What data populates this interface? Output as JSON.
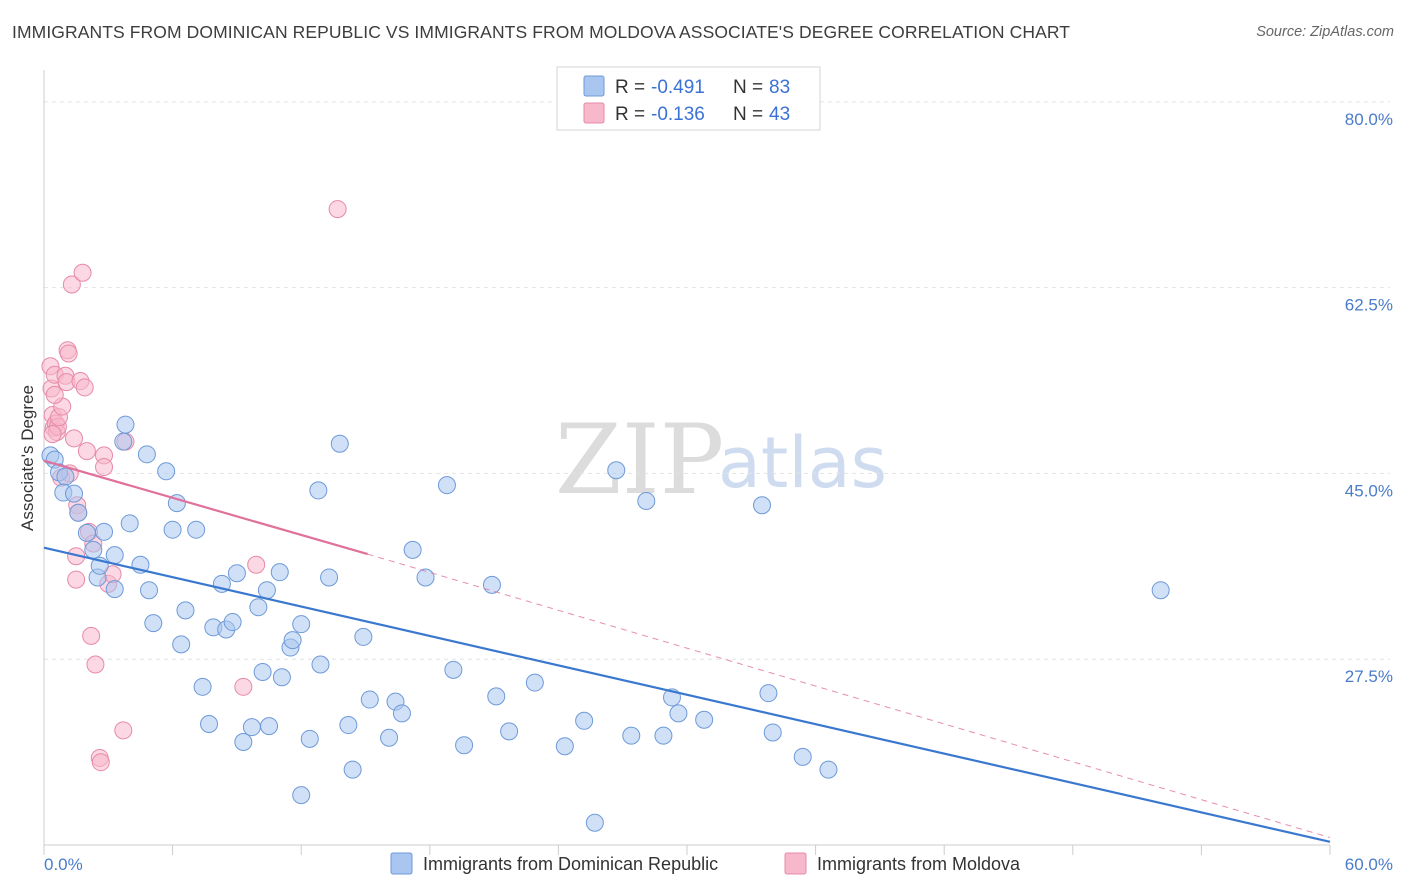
{
  "header": {
    "title": "IMMIGRANTS FROM DOMINICAN REPUBLIC VS IMMIGRANTS FROM MOLDOVA ASSOCIATE'S DEGREE CORRELATION CHART",
    "source": "Source: ZipAtlas.com"
  },
  "watermark": {
    "zip": "ZIP",
    "atlas": "atlas"
  },
  "legend": {
    "r_label": "R =",
    "n_label": "N =",
    "entries": [
      {
        "r": "-0.491",
        "n": "83"
      },
      {
        "r": "-0.136",
        "n": "43"
      }
    ]
  },
  "colors": {
    "blue_fill": "#a9c6f0",
    "blue_stroke": "#6e9ad8",
    "blue_line": "#3a78d0",
    "pink_fill": "#f7b8cc",
    "pink_stroke": "#e78aa8",
    "pink_line": "#e0719b",
    "tick_text": "#4a7cc9",
    "grid": "#e3e3e3"
  },
  "chart_data": {
    "type": "scatter",
    "title": "IMMIGRANTS FROM DOMINICAN REPUBLIC VS IMMIGRANTS FROM MOLDOVA ASSOCIATE'S DEGREE CORRELATION CHART",
    "ylabel": "Associate's Degree",
    "xlabel": "",
    "xlim": [
      0,
      60
    ],
    "ylim": [
      10,
      83
    ],
    "x_ticks": [
      "0.0%",
      "60.0%"
    ],
    "y_ticks": [
      {
        "value": 80.0,
        "label": "80.0%"
      },
      {
        "value": 62.5,
        "label": "62.5%"
      },
      {
        "value": 45.0,
        "label": "45.0%"
      },
      {
        "value": 27.5,
        "label": "27.5%"
      }
    ],
    "grid": true,
    "legend_position": "top-center",
    "series": [
      {
        "name": "Immigrants from Dominican Republic",
        "color": "#a9c6f0",
        "trend": {
          "x": [
            0,
            60
          ],
          "y": [
            38.0,
            10.3
          ],
          "style": "solid"
        },
        "points": [
          [
            0.3,
            46.7
          ],
          [
            0.5,
            46.3
          ],
          [
            0.7,
            45.1
          ],
          [
            1.0,
            44.7
          ],
          [
            0.9,
            43.2
          ],
          [
            1.4,
            43.1
          ],
          [
            1.6,
            41.3
          ],
          [
            2.0,
            39.4
          ],
          [
            2.3,
            37.8
          ],
          [
            2.5,
            35.2
          ],
          [
            2.6,
            36.3
          ],
          [
            2.8,
            39.5
          ],
          [
            3.3,
            37.3
          ],
          [
            3.3,
            34.1
          ],
          [
            3.8,
            49.6
          ],
          [
            3.7,
            48.0
          ],
          [
            4.0,
            40.3
          ],
          [
            4.5,
            36.4
          ],
          [
            4.9,
            34.0
          ],
          [
            5.1,
            30.9
          ],
          [
            4.8,
            46.8
          ],
          [
            5.7,
            45.2
          ],
          [
            6.0,
            39.7
          ],
          [
            6.2,
            42.2
          ],
          [
            6.4,
            28.9
          ],
          [
            6.6,
            32.1
          ],
          [
            7.1,
            39.7
          ],
          [
            7.4,
            24.9
          ],
          [
            7.7,
            21.4
          ],
          [
            7.9,
            30.5
          ],
          [
            8.3,
            34.6
          ],
          [
            8.5,
            30.3
          ],
          [
            8.8,
            31.0
          ],
          [
            9.0,
            35.6
          ],
          [
            9.3,
            19.7
          ],
          [
            9.7,
            21.1
          ],
          [
            10.0,
            32.4
          ],
          [
            10.2,
            26.3
          ],
          [
            10.4,
            34.0
          ],
          [
            10.5,
            21.2
          ],
          [
            11.0,
            35.7
          ],
          [
            11.1,
            25.8
          ],
          [
            11.5,
            28.6
          ],
          [
            11.6,
            29.3
          ],
          [
            12.0,
            30.8
          ],
          [
            12.4,
            20.0
          ],
          [
            12.8,
            43.4
          ],
          [
            12.9,
            27.0
          ],
          [
            13.3,
            35.2
          ],
          [
            13.8,
            47.8
          ],
          [
            14.2,
            21.3
          ],
          [
            14.4,
            17.1
          ],
          [
            14.9,
            29.6
          ],
          [
            15.2,
            23.7
          ],
          [
            16.1,
            20.1
          ],
          [
            16.4,
            23.5
          ],
          [
            16.7,
            22.4
          ],
          [
            17.2,
            37.8
          ],
          [
            17.8,
            35.2
          ],
          [
            18.8,
            43.9
          ],
          [
            19.1,
            26.5
          ],
          [
            19.6,
            19.4
          ],
          [
            20.9,
            34.5
          ],
          [
            21.1,
            24.0
          ],
          [
            21.7,
            20.7
          ],
          [
            22.9,
            25.3
          ],
          [
            24.3,
            19.3
          ],
          [
            25.2,
            21.7
          ],
          [
            25.7,
            12.1
          ],
          [
            26.7,
            45.3
          ],
          [
            27.4,
            20.3
          ],
          [
            28.1,
            42.4
          ],
          [
            28.9,
            20.3
          ],
          [
            29.3,
            23.9
          ],
          [
            29.6,
            22.4
          ],
          [
            30.8,
            21.8
          ],
          [
            33.5,
            42.0
          ],
          [
            33.8,
            24.3
          ],
          [
            34.0,
            20.6
          ],
          [
            35.4,
            18.3
          ],
          [
            36.6,
            17.1
          ],
          [
            52.1,
            34.0
          ],
          [
            12.0,
            14.7
          ]
        ]
      },
      {
        "name": "Immigrants from Moldova",
        "color": "#f7b8cc",
        "trend": {
          "x": [
            0,
            15.1
          ],
          "y": [
            46.2,
            37.4
          ],
          "style": "solid",
          "extended": {
            "x": [
              15.1,
              60
            ],
            "y": [
              37.4,
              10.7
            ],
            "style": "dashed"
          }
        },
        "points": [
          [
            0.3,
            55.1
          ],
          [
            0.35,
            53.0
          ],
          [
            0.4,
            50.5
          ],
          [
            0.45,
            49.3
          ],
          [
            0.5,
            54.3
          ],
          [
            0.55,
            49.7
          ],
          [
            0.6,
            48.9
          ],
          [
            0.65,
            49.4
          ],
          [
            0.7,
            50.3
          ],
          [
            0.8,
            44.6
          ],
          [
            0.85,
            51.3
          ],
          [
            1.0,
            54.2
          ],
          [
            1.05,
            53.6
          ],
          [
            1.1,
            56.6
          ],
          [
            1.15,
            56.3
          ],
          [
            1.2,
            45.0
          ],
          [
            1.3,
            62.8
          ],
          [
            1.4,
            48.3
          ],
          [
            1.5,
            37.2
          ],
          [
            1.55,
            42.0
          ],
          [
            1.6,
            41.3
          ],
          [
            1.5,
            35.0
          ],
          [
            1.7,
            53.7
          ],
          [
            1.8,
            63.9
          ],
          [
            1.9,
            53.1
          ],
          [
            2.0,
            47.1
          ],
          [
            2.1,
            39.5
          ],
          [
            2.2,
            29.7
          ],
          [
            2.3,
            38.4
          ],
          [
            2.4,
            27.0
          ],
          [
            2.6,
            18.2
          ],
          [
            2.65,
            17.8
          ],
          [
            2.8,
            46.7
          ],
          [
            2.8,
            45.6
          ],
          [
            3.0,
            34.6
          ],
          [
            3.2,
            35.5
          ],
          [
            3.7,
            20.8
          ],
          [
            3.8,
            48.0
          ],
          [
            9.3,
            24.9
          ],
          [
            9.9,
            36.4
          ],
          [
            13.7,
            69.9
          ],
          [
            0.4,
            48.7
          ],
          [
            0.5,
            52.4
          ]
        ]
      }
    ]
  },
  "bottom_legend": {
    "items": [
      "Immigrants from Dominican Republic",
      "Immigrants from Moldova"
    ]
  }
}
